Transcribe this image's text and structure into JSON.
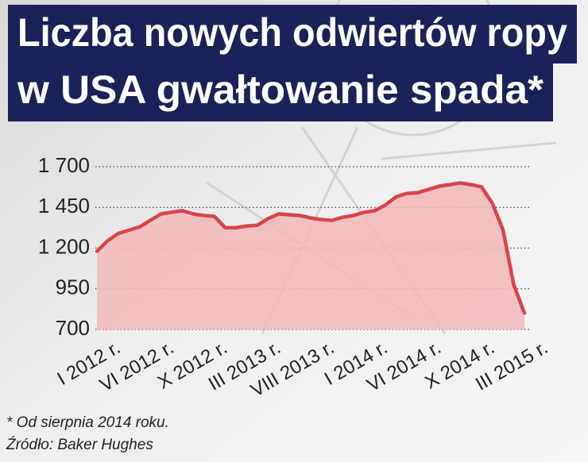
{
  "chart_data": {
    "type": "area",
    "title": [
      "Liczba nowych odwiertów ropy",
      "w USA gwałtowanie spada*"
    ],
    "note": "* Od sierpnia 2014 roku.",
    "source": "Źródło: Baker Hughes",
    "categories": [
      "I 2012 r.",
      null,
      null,
      null,
      null,
      "VI 2012 r.",
      null,
      null,
      null,
      null,
      "X 2012 r.",
      null,
      null,
      null,
      null,
      "III 2013 r.",
      null,
      null,
      null,
      null,
      "VIII 2013 r.",
      null,
      null,
      null,
      null,
      "I 2014 r.",
      null,
      null,
      null,
      null,
      "VI 2014 r.",
      null,
      null,
      null,
      null,
      "X 2014 r.",
      null,
      null,
      null,
      null,
      "III 2015 r."
    ],
    "values": [
      1180,
      1245,
      1290,
      1310,
      1330,
      1370,
      1410,
      1420,
      1430,
      1410,
      1400,
      1395,
      1325,
      1325,
      1335,
      1340,
      1380,
      1410,
      1405,
      1400,
      1385,
      1375,
      1370,
      1390,
      1400,
      1420,
      1430,
      1465,
      1515,
      1535,
      1540,
      1560,
      1580,
      1590,
      1600,
      1590,
      1575,
      1475,
      1310,
      975,
      800
    ],
    "color": "#d9434a",
    "fill": "#f4b9bb",
    "ylim": [
      700,
      1700
    ],
    "yticks": [
      {
        "value": 700,
        "label": "700"
      },
      950,
      {
        "value": 1200,
        "label": "1 200"
      },
      {
        "value": 1450,
        "label": "1 450"
      },
      {
        "value": 1700,
        "label": "1 700"
      }
    ],
    "grid": true
  }
}
